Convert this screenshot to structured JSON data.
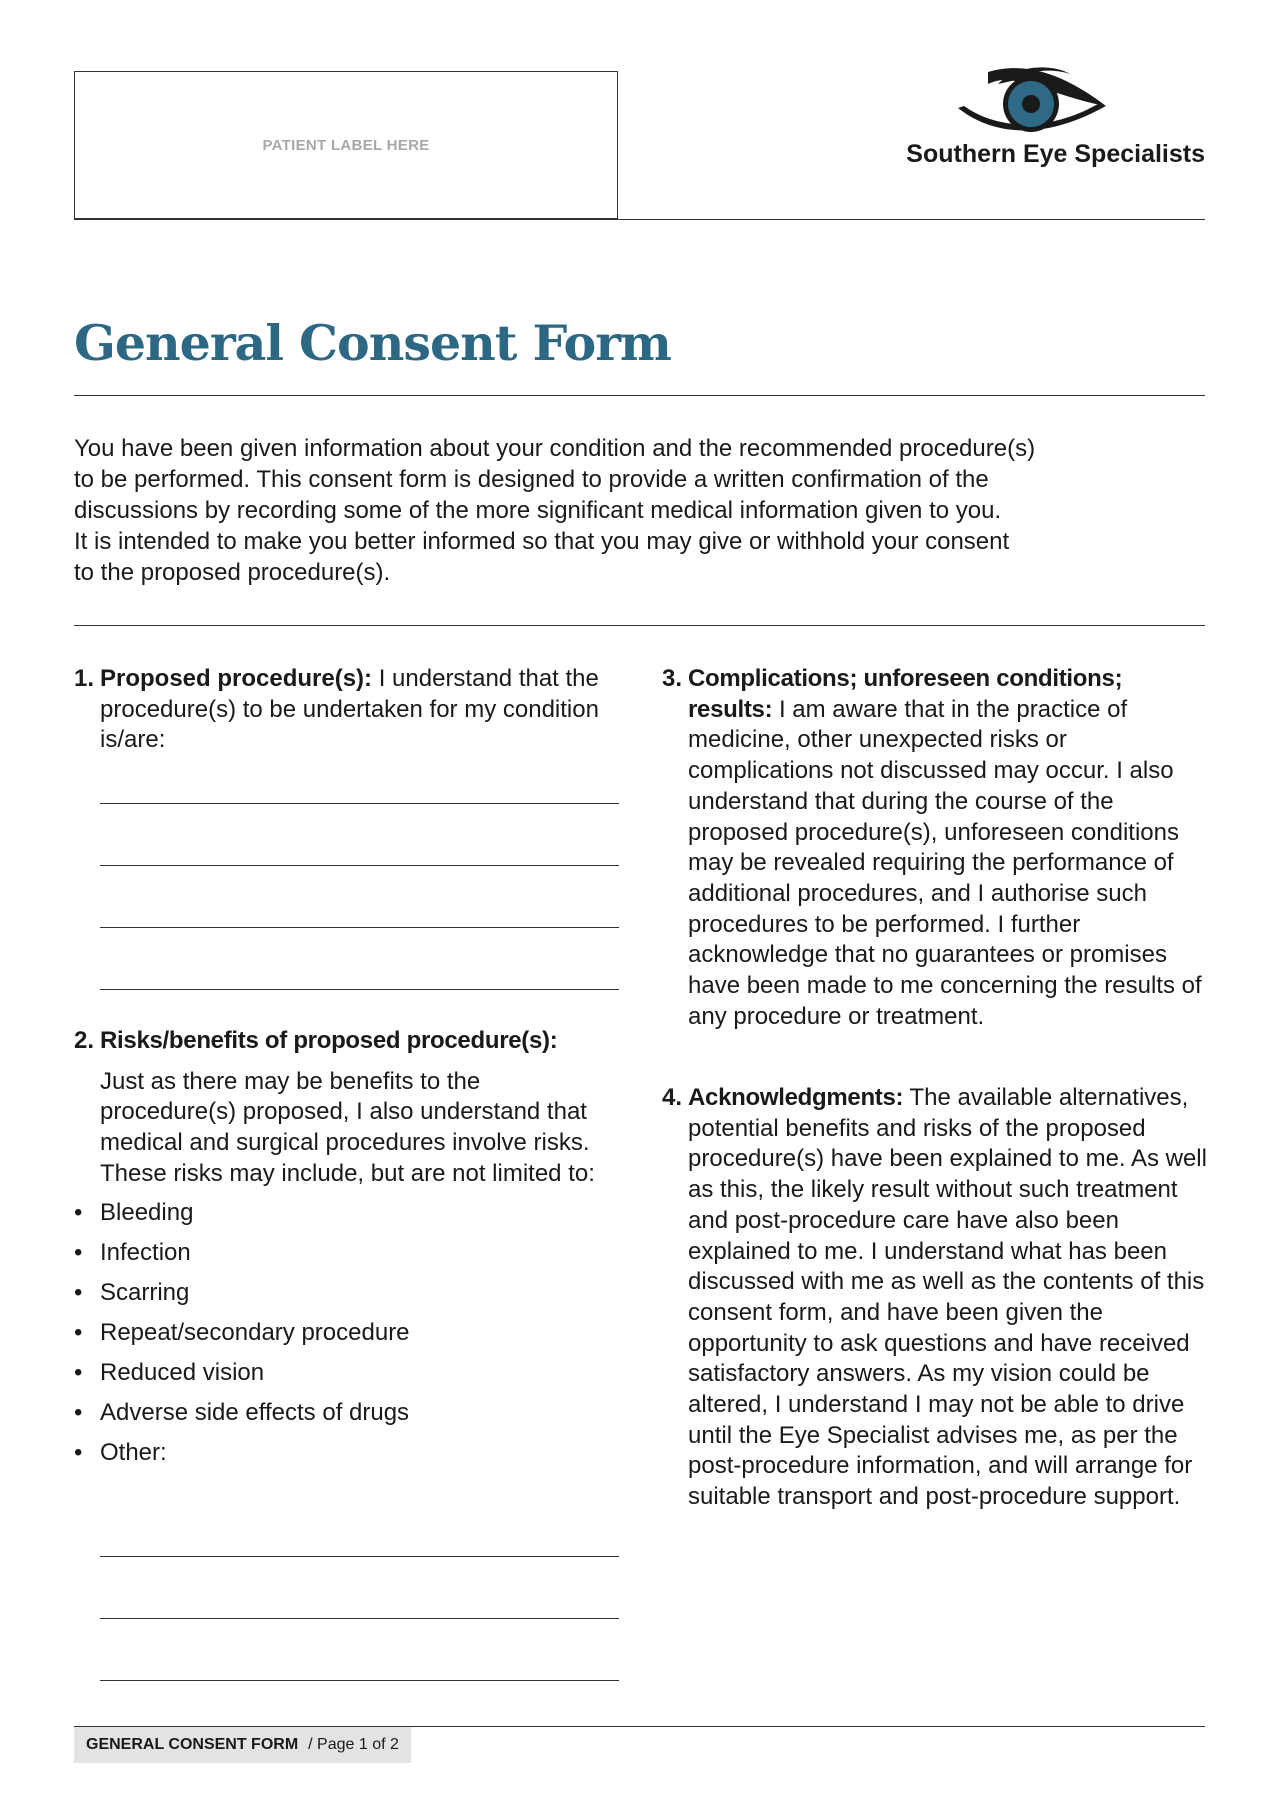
{
  "patient_label": "PATIENT LABEL HERE",
  "brand": {
    "name": "Southern Eye Specialists",
    "logo_icon": "eye-icon",
    "iris_color": "#2e6a85"
  },
  "title": "General Consent Form",
  "title_color": "#2c6783",
  "intro": [
    "You have been given information about your condition and the recommended procedure(s)",
    "to be performed. This consent form is designed to provide a written confirmation of the",
    "discussions by recording some of the more significant medical information given to you.",
    "It is intended to make you better informed so that you may give or withhold your consent",
    "to the proposed procedure(s)."
  ],
  "sections": {
    "s1": {
      "num": "1.",
      "heading": "Proposed procedure(s):",
      "text": " I understand that the procedure(s) to be undertaken for my condition is/are:"
    },
    "s2": {
      "num": "2.",
      "heading": "Risks/benefits of proposed procedure(s):",
      "text": "Just as there may be benefits to the procedure(s) proposed, I also understand that medical and surgical procedures involve risks. These risks may include, but are not limited to:",
      "risks": [
        "Bleeding",
        "Infection",
        "Scarring",
        "Repeat/secondary procedure",
        "Reduced vision",
        "Adverse side effects of drugs",
        "Other:"
      ]
    },
    "s3": {
      "num": "3.",
      "heading": "Complications; unforeseen conditions; results:",
      "text": " I am aware that in the practice of medicine, other unexpected risks or complications not discussed may occur. I also understand that during the course of the proposed procedure(s), unforeseen conditions may be revealed requiring the performance of additional procedures, and I authorise such procedures to be performed. I further acknowledge that no guarantees or promises have been made to me concerning the results of any procedure or treatment."
    },
    "s4": {
      "num": "4.",
      "heading": "Acknowledgments:",
      "text": " The available alternatives, potential benefits and risks of the proposed procedure(s) have been explained to me. As well as this, the likely result without such treatment and post-procedure care have also been explained to me. I understand what has been discussed with me as well as the contents of this consent form, and have been given the opportunity to ask questions and have received satisfactory answers. As my vision could be altered, I understand I may not be able to drive until the Eye Specialist advises me, as per the post-procedure information, and will arrange for suitable transport and post-procedure support."
    }
  },
  "footer": {
    "form_name": "GENERAL CONSENT FORM",
    "page": "/ Page 1 of 2"
  }
}
